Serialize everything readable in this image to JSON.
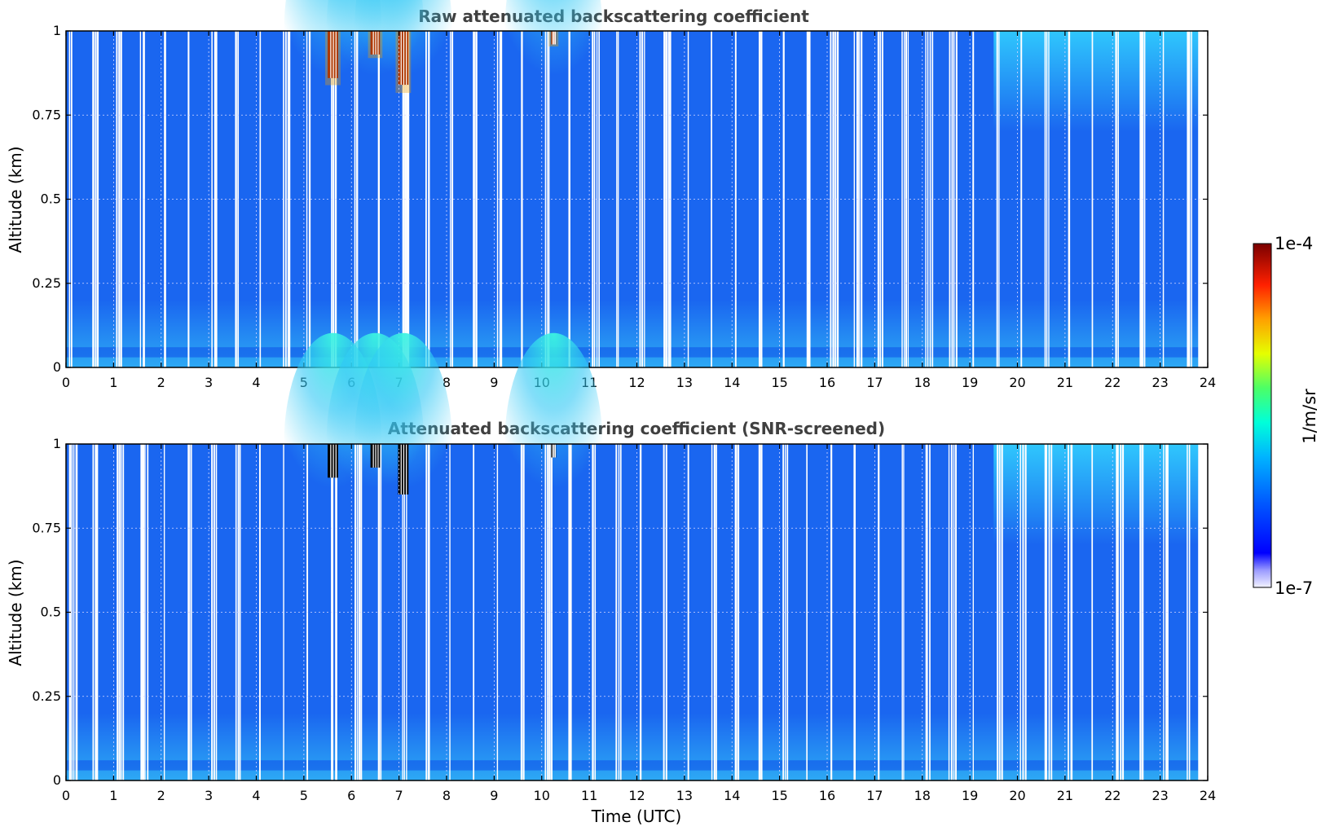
{
  "chart_data": [
    {
      "type": "heatmap",
      "title": "Raw attenuated backscattering coefficient",
      "xlabel": "",
      "ylabel": "Altitude (km)",
      "xlim": [
        0,
        24
      ],
      "ylim": [
        0,
        1
      ],
      "xticks": [
        "0",
        "1",
        "2",
        "3",
        "4",
        "5",
        "6",
        "7",
        "8",
        "9",
        "10",
        "11",
        "12",
        "13",
        "14",
        "15",
        "16",
        "17",
        "18",
        "19",
        "20",
        "21",
        "22",
        "23",
        "24"
      ],
      "yticks": [
        "0",
        "0.25",
        "0.5",
        "0.75",
        "1"
      ],
      "grid": true,
      "data_end_hour": 23.8,
      "features": [
        {
          "t0": 5.5,
          "t1": 5.72,
          "alt0": 0.86,
          "alt1": 1.0,
          "level": "high"
        },
        {
          "t0": 6.4,
          "t1": 6.6,
          "alt0": 0.93,
          "alt1": 1.0,
          "level": "high"
        },
        {
          "t0": 6.98,
          "t1": 7.2,
          "alt0": 0.84,
          "alt1": 1.0,
          "level": "high"
        },
        {
          "t0": 10.2,
          "t1": 10.3,
          "alt0": 0.96,
          "alt1": 1.0,
          "level": "high"
        }
      ]
    },
    {
      "type": "heatmap",
      "title": "Attenuated backscattering coefficient (SNR-screened)",
      "xlabel": "Time (UTC)",
      "ylabel": "Altitude (km)",
      "xlim": [
        0,
        24
      ],
      "ylim": [
        0,
        1
      ],
      "xticks": [
        "0",
        "1",
        "2",
        "3",
        "4",
        "5",
        "6",
        "7",
        "8",
        "9",
        "10",
        "11",
        "12",
        "13",
        "14",
        "15",
        "16",
        "17",
        "18",
        "19",
        "20",
        "21",
        "22",
        "23",
        "24"
      ],
      "yticks": [
        "0",
        "0.25",
        "0.5",
        "0.75",
        "1"
      ],
      "grid": true,
      "data_end_hour": 23.8,
      "features": [
        {
          "t0": 5.5,
          "t1": 5.72,
          "alt0": 0.9,
          "alt1": 1.0,
          "level": "screened"
        },
        {
          "t0": 6.4,
          "t1": 6.6,
          "alt0": 0.93,
          "alt1": 1.0,
          "level": "screened"
        },
        {
          "t0": 6.98,
          "t1": 7.2,
          "alt0": 0.85,
          "alt1": 1.0,
          "level": "screened"
        },
        {
          "t0": 10.2,
          "t1": 10.3,
          "alt0": 0.96,
          "alt1": 1.0,
          "level": "screened"
        }
      ]
    }
  ],
  "colorbar": {
    "label": "1/m/sr",
    "min_label": "1e-7",
    "max_label": "1e-4",
    "scale": "log",
    "range": [
      1e-07,
      0.0001
    ]
  },
  "colors": {
    "background": "#1a66f0",
    "lowlayer": "#2a9af0",
    "plume": "#2ee0f0",
    "high": "#8b0000",
    "screened": "#000000"
  }
}
